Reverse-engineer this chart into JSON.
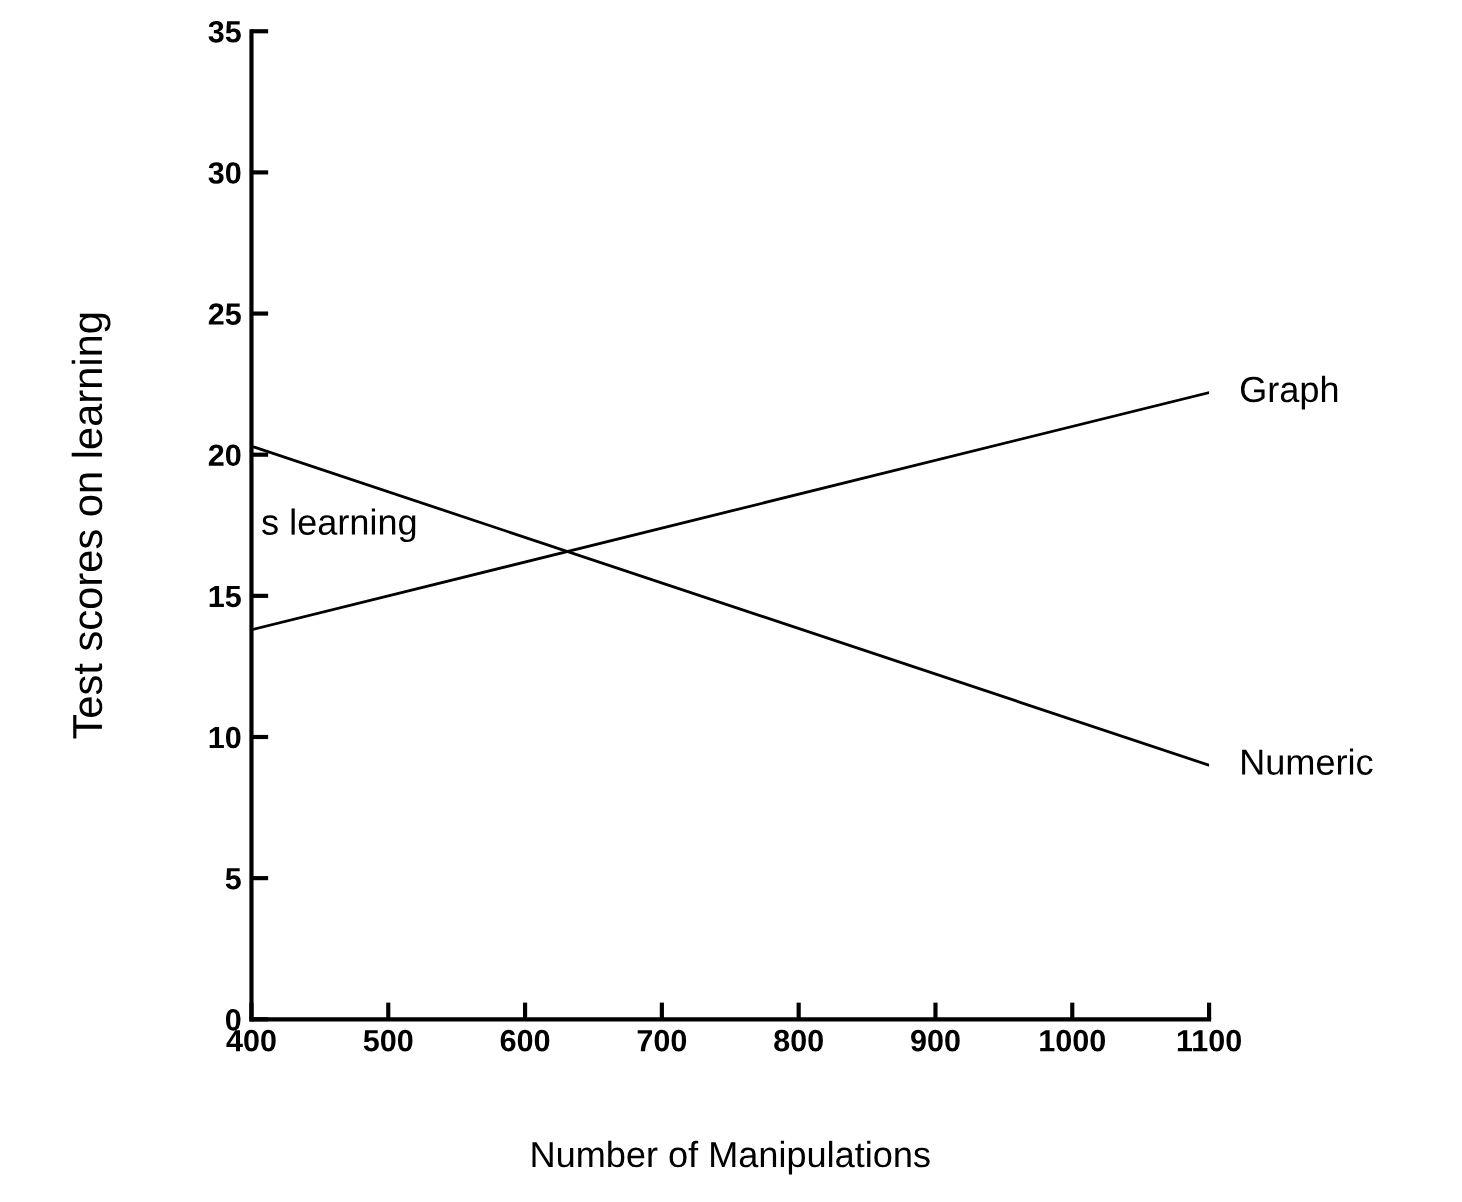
{
  "chart_data": {
    "type": "line",
    "xlabel": "Number of Manipulations",
    "ylabel": "Test scores on learning",
    "series": [
      {
        "name": "Graph",
        "color": "#000000",
        "values": [
          13.8,
          22.2
        ]
      },
      {
        "name": "Numeric",
        "color": "#000000",
        "values": [
          20.3,
          9
        ]
      }
    ],
    "x": [
      400,
      1100
    ],
    "annotations": [
      "s learning"
    ],
    "xlim": [
      400,
      1100
    ],
    "ylim": [
      0,
      35
    ],
    "xticks": [
      400,
      500,
      600,
      700,
      800,
      900,
      1000,
      1100
    ],
    "yticks": [
      0,
      5,
      10,
      15,
      20,
      25,
      30,
      35
    ],
    "grid": false,
    "legend": false,
    "marker": "none",
    "line_style": "solid"
  }
}
